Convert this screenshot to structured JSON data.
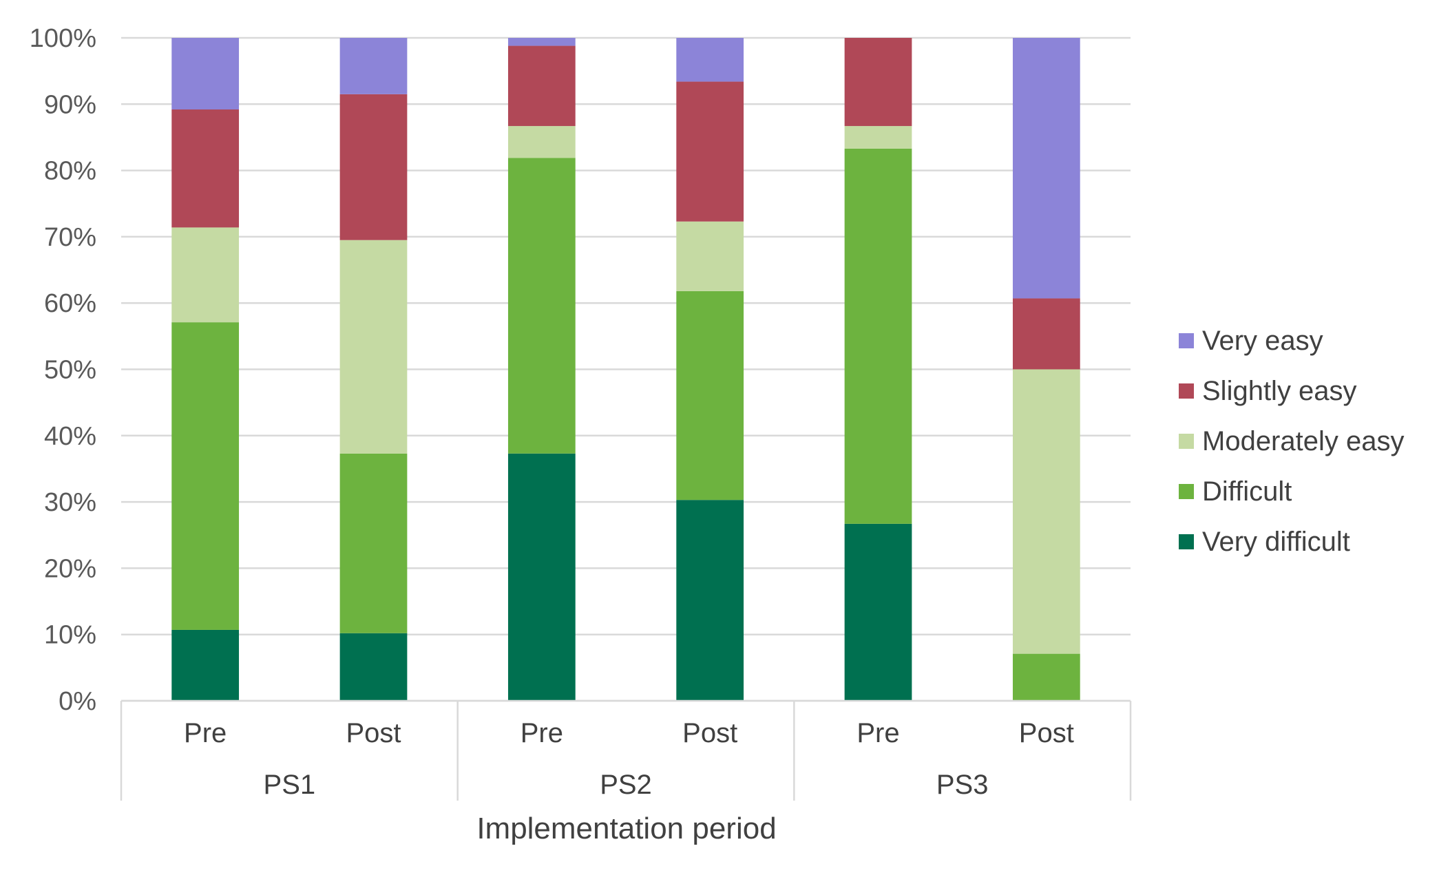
{
  "chart_data": {
    "type": "bar",
    "stacked": true,
    "percent": true,
    "title": "",
    "ylabel": "",
    "xlabel": "Implementation period",
    "ylim": [
      0,
      100
    ],
    "y_ticks": [
      "0%",
      "10%",
      "20%",
      "30%",
      "40%",
      "50%",
      "60%",
      "70%",
      "80%",
      "90%",
      "100%"
    ],
    "groups": [
      "PS1",
      "PS2",
      "PS3"
    ],
    "categories": [
      "Pre",
      "Post",
      "Pre",
      "Post",
      "Pre",
      "Post"
    ],
    "series": [
      {
        "name": "Very difficult",
        "color": "#007050",
        "values": [
          10.7,
          10.2,
          37.3,
          30.3,
          26.7,
          0
        ]
      },
      {
        "name": "Difficult",
        "color": "#6db33f",
        "values": [
          46.4,
          27.1,
          44.6,
          31.5,
          56.6,
          7.1
        ]
      },
      {
        "name": "Moderately easy",
        "color": "#c5daa3",
        "values": [
          14.3,
          32.2,
          4.8,
          10.5,
          3.4,
          42.9
        ]
      },
      {
        "name": "Slightly easy",
        "color": "#b04857",
        "values": [
          17.8,
          22.0,
          12.1,
          21.1,
          13.3,
          10.7
        ]
      },
      {
        "name": "Very easy",
        "color": "#8c84d8",
        "values": [
          10.8,
          8.5,
          1.2,
          6.6,
          0,
          39.3
        ]
      }
    ],
    "legend_position": "right",
    "grid": true
  }
}
